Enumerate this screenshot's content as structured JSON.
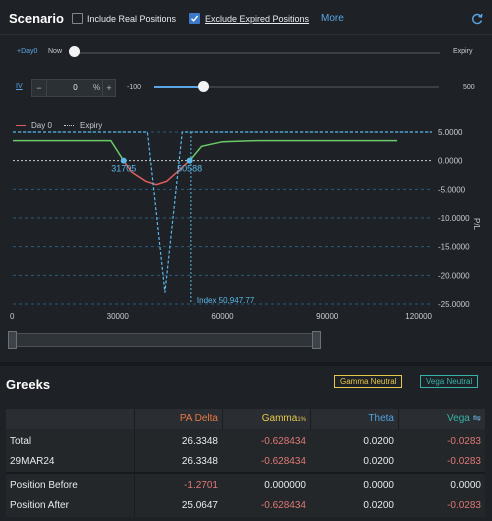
{
  "scenario": {
    "title": "Scenario",
    "include_real_label": "Include Real Positions",
    "include_real_checked": false,
    "exclude_expired_label": "Exclude Expired Positions",
    "exclude_expired_checked": true,
    "more_label": "More",
    "day_toggle_label": "+Day0",
    "time_now_label": "Now",
    "time_expiry_label": "Expiry",
    "time_value": 0,
    "iv_label": "IV",
    "iv_minus": "−",
    "iv_value": "0",
    "iv_unit": "%",
    "iv_plus": "+",
    "iv_min_label": "-100",
    "iv_max_label": "500",
    "iv_level": 0,
    "legend_day0": "Day 0",
    "legend_expiry": "Expiry"
  },
  "chart_data": {
    "type": "line",
    "ylabel": "P/L",
    "xlim": [
      0,
      120000
    ],
    "ylim": [
      -25,
      5
    ],
    "x_ticks": [
      "0",
      "30000",
      "60000",
      "90000",
      "120000"
    ],
    "y_ticks": [
      "5.0000",
      "0.0000",
      "-5.0000",
      "-10.0000",
      "-15.0000",
      "-20.0000",
      "-25.0000"
    ],
    "series": [
      {
        "name": "Day 0",
        "color": "#e05d5d",
        "x": [
          0,
          28000,
          31705,
          34000,
          38000,
          41000,
          44000,
          47000,
          50588,
          54000,
          60000,
          70000,
          110000
        ],
        "y": [
          3.5,
          3.5,
          0,
          -2,
          -3.6,
          -4.2,
          -3.6,
          -2,
          0,
          2.5,
          3.3,
          3.5,
          3.5
        ]
      },
      {
        "name": "Expiry",
        "color": "#5bb8e8",
        "x": [
          0,
          38500,
          43500,
          48500,
          120000
        ],
        "y": [
          5,
          5,
          -23,
          5,
          5
        ]
      }
    ],
    "breakevens": [
      31705,
      50588
    ],
    "breakeven_labels": [
      "31705",
      "50588"
    ],
    "index_value": 50947.77,
    "index_label": "Index 50,947.77",
    "range_label_min": "",
    "range_label_max": ""
  },
  "greeks": {
    "title": "Greeks",
    "gamma_neutral_label": "Gamma Neutral",
    "vega_neutral_label": "Vega Neutral",
    "headers": {
      "pa_delta": "PA Delta",
      "gamma": "Gamma",
      "gamma_sub": "1%",
      "theta": "Theta",
      "vega": "Vega",
      "vega_icon": "⇋"
    },
    "rows": [
      {
        "label": "Total",
        "pa_delta": "26.3348",
        "gamma": "-0.628434",
        "theta": "0.0200",
        "vega": "-0.0283"
      },
      {
        "label": "29MAR24",
        "pa_delta": "26.3348",
        "gamma": "-0.628434",
        "theta": "0.0200",
        "vega": "-0.0283"
      },
      {
        "label": "Position Before",
        "pa_delta": "-1.2701",
        "gamma": "0.000000",
        "theta": "0.0000",
        "vega": "0.0000"
      },
      {
        "label": "Position After",
        "pa_delta": "25.0647",
        "gamma": "-0.628434",
        "theta": "0.0200",
        "vega": "-0.0283"
      }
    ]
  }
}
